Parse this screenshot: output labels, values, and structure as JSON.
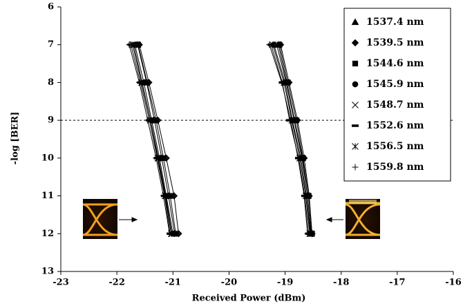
{
  "chart_data": {
    "type": "scatter",
    "x_label": "Received Power (dBm)",
    "y_label": "-log [BER]",
    "xlim": [
      -23,
      -16
    ],
    "xticks": [
      -23,
      -22,
      -21,
      -20,
      -19,
      -18,
      -17,
      -16
    ],
    "ylim": [
      6,
      13
    ],
    "yticks": [
      6,
      7,
      8,
      9,
      10,
      11,
      12,
      13
    ],
    "y_reversed": true,
    "reference_line": 9,
    "legend": "top-right",
    "color": "#000000",
    "series": [
      {
        "name": "1537.4 nm",
        "marker": "triangle",
        "x": [
          -21.63,
          -21.47,
          -21.33,
          -21.2,
          -21.08,
          -20.97,
          null,
          -19.12,
          -18.97,
          -18.83,
          -18.69,
          -18.6,
          -18.53
        ],
        "y": [
          7,
          8,
          9,
          10,
          11,
          12,
          null,
          7,
          8,
          9,
          10,
          11,
          12
        ]
      },
      {
        "name": "1539.5 nm",
        "marker": "diamond",
        "x": [
          -21.6,
          -21.43,
          -21.27,
          -21.12,
          -20.98,
          -20.9,
          null,
          -19.08,
          -18.93,
          -18.78,
          -18.66,
          -18.57,
          -18.52
        ],
        "y": [
          7,
          8,
          9,
          10,
          11,
          12,
          null,
          7,
          8,
          9,
          10,
          11,
          12
        ]
      },
      {
        "name": "1544.6 nm",
        "marker": "square",
        "x": [
          -21.62,
          -21.46,
          -21.3,
          -21.17,
          -21.05,
          -20.95,
          null,
          -19.1,
          -18.95,
          -18.8,
          -18.68,
          -18.58,
          -18.52
        ],
        "y": [
          7,
          8,
          9,
          10,
          11,
          12,
          null,
          7,
          8,
          9,
          10,
          11,
          12
        ]
      },
      {
        "name": "1545.9 nm",
        "marker": "circle",
        "x": [
          -21.68,
          -21.52,
          -21.38,
          -21.24,
          -21.12,
          -21.0,
          null,
          -19.2,
          -19.0,
          -18.87,
          -18.72,
          -18.62,
          -18.55
        ],
        "y": [
          7,
          8,
          9,
          10,
          11,
          12,
          null,
          7,
          8,
          9,
          10,
          11,
          12
        ]
      },
      {
        "name": "1548.7 nm",
        "marker": "x",
        "x": [
          -21.7,
          -21.55,
          -21.4,
          -21.26,
          -21.13,
          -21.02,
          null,
          -19.15,
          -18.98,
          -18.84,
          -18.7,
          -18.6,
          -18.54
        ],
        "y": [
          7,
          8,
          9,
          10,
          11,
          12,
          null,
          7,
          8,
          9,
          10,
          11,
          12
        ]
      },
      {
        "name": "1552.6 nm",
        "marker": "dash",
        "x": [
          -21.75,
          -21.58,
          -21.42,
          -21.28,
          -21.15,
          -21.05,
          null,
          -19.25,
          -19.05,
          -18.92,
          -18.76,
          -18.65,
          -18.58
        ],
        "y": [
          7,
          8,
          9,
          10,
          11,
          12,
          null,
          7,
          8,
          9,
          10,
          11,
          12
        ]
      },
      {
        "name": "1556.5 nm",
        "marker": "asterisk",
        "x": [
          -21.72,
          -21.56,
          -21.4,
          -21.27,
          -21.14,
          -21.03,
          null,
          -19.22,
          -19.02,
          -18.88,
          -18.74,
          -18.63,
          -18.56
        ],
        "y": [
          7,
          8,
          9,
          10,
          11,
          12,
          null,
          7,
          8,
          9,
          10,
          11,
          12
        ]
      },
      {
        "name": "1559.8 nm",
        "marker": "plus",
        "x": [
          -21.78,
          -21.6,
          -21.45,
          -21.3,
          -21.17,
          -21.06,
          null,
          -19.28,
          -19.06,
          -18.9,
          -18.77,
          -18.66,
          -18.6
        ],
        "y": [
          7,
          8,
          9,
          10,
          11,
          12,
          null,
          7,
          8,
          9,
          10,
          11,
          12
        ]
      }
    ]
  }
}
